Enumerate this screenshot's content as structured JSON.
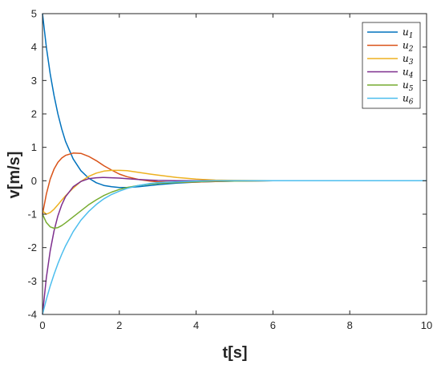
{
  "chart_data": {
    "type": "line",
    "xlabel": "t[s]",
    "ylabel": "v[m/s]",
    "xlim": [
      0,
      10
    ],
    "ylim": [
      -4,
      5
    ],
    "xticks": [
      0,
      2,
      4,
      6,
      8,
      10
    ],
    "yticks": [
      -4,
      -3,
      -2,
      -1,
      0,
      1,
      2,
      3,
      4,
      5
    ],
    "grid": false,
    "legend_position": "top-right",
    "x": [
      0,
      0.1,
      0.2,
      0.3,
      0.4,
      0.5,
      0.6,
      0.8,
      1.0,
      1.2,
      1.4,
      1.6,
      1.8,
      2.0,
      2.2,
      2.5,
      2.8,
      3.0,
      3.5,
      4.0,
      4.5,
      5.0,
      6.0,
      7.0,
      8.0,
      9.0,
      10.0
    ],
    "series": [
      {
        "name": "u",
        "sub": "1",
        "color": "#0072BD",
        "values": [
          5.0,
          4.0,
          3.2,
          2.55,
          2.0,
          1.55,
          1.18,
          0.65,
          0.3,
          0.08,
          -0.06,
          -0.14,
          -0.18,
          -0.2,
          -0.2,
          -0.18,
          -0.14,
          -0.12,
          -0.07,
          -0.04,
          -0.02,
          -0.01,
          0,
          0,
          0,
          0,
          0
        ]
      },
      {
        "name": "u",
        "sub": "2",
        "color": "#D95319",
        "values": [
          -1.0,
          -0.4,
          0.05,
          0.35,
          0.55,
          0.68,
          0.76,
          0.83,
          0.82,
          0.73,
          0.6,
          0.45,
          0.32,
          0.2,
          0.12,
          0.04,
          -0.01,
          -0.03,
          -0.05,
          -0.04,
          -0.02,
          -0.01,
          0,
          0,
          0,
          0,
          0
        ]
      },
      {
        "name": "u",
        "sub": "3",
        "color": "#EDB120",
        "values": [
          -0.9,
          -1.0,
          -0.95,
          -0.85,
          -0.72,
          -0.58,
          -0.45,
          -0.22,
          -0.02,
          0.13,
          0.23,
          0.29,
          0.31,
          0.31,
          0.3,
          0.25,
          0.2,
          0.17,
          0.1,
          0.05,
          0.02,
          0.01,
          0,
          0,
          0,
          0,
          0
        ]
      },
      {
        "name": "u",
        "sub": "4",
        "color": "#7E2F8E",
        "values": [
          -4.0,
          -2.9,
          -2.1,
          -1.5,
          -1.05,
          -0.72,
          -0.48,
          -0.18,
          -0.02,
          0.06,
          0.09,
          0.1,
          0.09,
          0.08,
          0.06,
          0.04,
          0.02,
          0.01,
          0,
          0,
          0,
          0,
          0,
          0,
          0,
          0,
          0
        ]
      },
      {
        "name": "u",
        "sub": "5",
        "color": "#77AC30",
        "values": [
          -1.0,
          -1.25,
          -1.38,
          -1.42,
          -1.4,
          -1.34,
          -1.26,
          -1.08,
          -0.9,
          -0.72,
          -0.57,
          -0.44,
          -0.34,
          -0.26,
          -0.2,
          -0.14,
          -0.1,
          -0.08,
          -0.05,
          -0.03,
          -0.01,
          -0.01,
          0,
          0,
          0,
          0,
          0
        ]
      },
      {
        "name": "u",
        "sub": "6",
        "color": "#4DBEEE",
        "values": [
          -4.0,
          -3.55,
          -3.15,
          -2.8,
          -2.48,
          -2.2,
          -1.95,
          -1.52,
          -1.18,
          -0.92,
          -0.71,
          -0.54,
          -0.41,
          -0.31,
          -0.23,
          -0.14,
          -0.08,
          -0.06,
          -0.03,
          -0.01,
          0,
          0,
          0,
          0,
          0,
          0,
          0
        ]
      }
    ]
  }
}
